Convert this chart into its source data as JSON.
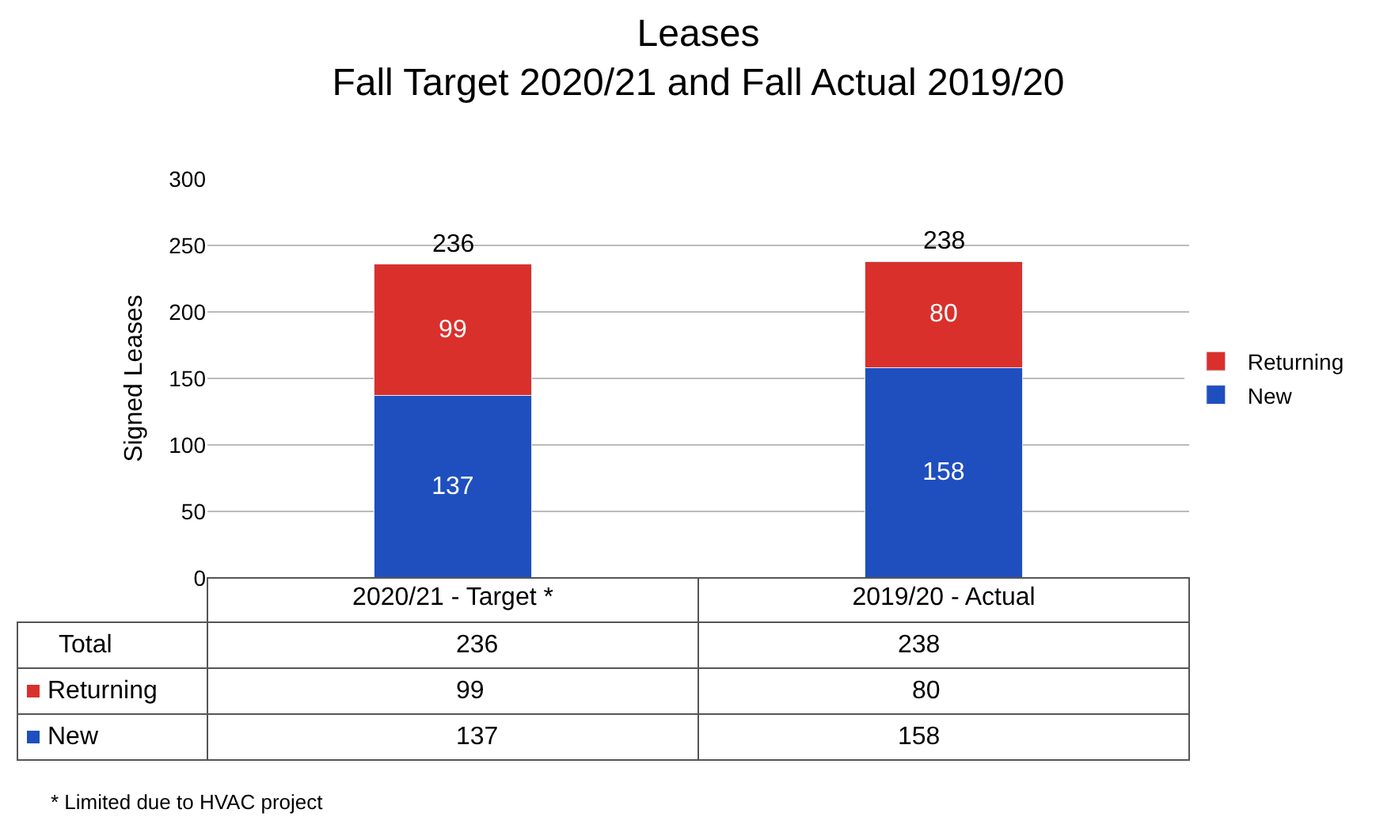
{
  "chart_data": {
    "type": "bar",
    "title": "Leases",
    "subtitle": "Fall Target 2020/21 and Fall Actual 2019/20",
    "ylabel": "Signed Leases",
    "categories": [
      "2020/21 - Target *",
      "2019/20 - Actual"
    ],
    "series": [
      {
        "name": "New",
        "color": "#1f4fbf",
        "values": [
          137,
          158
        ],
        "value_labels": [
          "137",
          "158"
        ]
      },
      {
        "name": "Returning",
        "color": "#d9302c",
        "values": [
          99,
          80
        ],
        "value_labels": [
          "99",
          "80"
        ]
      }
    ],
    "stacked": true,
    "totals": [
      "236",
      "238"
    ],
    "ylim": [
      0,
      300
    ],
    "yticks": [
      0,
      50,
      100,
      150,
      200,
      250,
      300
    ],
    "grid": "y",
    "legend": "right",
    "annotations": [
      "Total",
      "99",
      "80",
      "137",
      "158",
      "* Limited due to HVAC project"
    ]
  }
}
